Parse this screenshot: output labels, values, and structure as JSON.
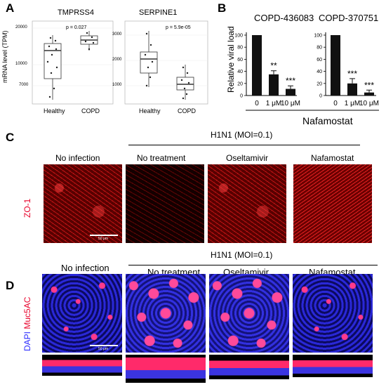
{
  "panels": {
    "a": "A",
    "b": "B",
    "c": "C",
    "d": "D"
  },
  "panel_a": {
    "ylabel": "mRNA level (TPM)",
    "plots": [
      {
        "gene": "TMPRSS4",
        "pvalue": "p = 0.027",
        "yticks": [
          "20000",
          "10000",
          "7000"
        ],
        "groups": [
          "Healthy",
          "COPD"
        ]
      },
      {
        "gene": "SERPINE1",
        "pvalue": "p = 5.9e-05",
        "yticks": [
          "3000",
          "2000",
          "1000"
        ],
        "groups": [
          "Healthy",
          "COPD"
        ]
      }
    ]
  },
  "panel_b": {
    "ylabel": "Relative viral load",
    "xlabel": "Nafamostat",
    "charts": [
      {
        "title": "COPD-436083",
        "yticks": [
          "100",
          "80",
          "60",
          "40",
          "20",
          "0"
        ],
        "categories": [
          "0",
          "1 μM",
          "10 μM"
        ],
        "stars": [
          "",
          "**",
          "***"
        ]
      },
      {
        "title": "COPD-370751",
        "yticks": [
          "100",
          "80",
          "60",
          "40",
          "20",
          "0"
        ],
        "categories": [
          "0",
          "1 μM",
          "10 μM"
        ],
        "stars": [
          "",
          "***",
          "***"
        ]
      }
    ]
  },
  "panel_c": {
    "header": "H1N1 (MOI=0.1)",
    "columns": [
      "No infection",
      "No treatment",
      "Oseltamivir",
      "Nafamostat"
    ],
    "stain": "ZO-1",
    "scale_bar": "50 μm"
  },
  "panel_d": {
    "header": "H1N1 (MOI=0.1)",
    "columns": [
      "No infection",
      "No treatment",
      "Oseltamivir",
      "Nafamostat"
    ],
    "stain_dapi": "DAPI",
    "stain_muc": "Muc5AC",
    "scale_bar": "50 μm"
  },
  "colors": {
    "dapi": "#2b2bff",
    "muc5ac": "#e8002a",
    "zo1": "#e8002a"
  },
  "chart_data": [
    {
      "type": "bar",
      "title": "COPD-436083",
      "categories": [
        "0",
        "1 μM",
        "10 μM"
      ],
      "values": [
        100,
        35,
        11
      ],
      "errors": [
        0,
        6,
        5
      ],
      "xlabel": "Nafamostat",
      "ylabel": "Relative viral load",
      "ylim": [
        0,
        110
      ]
    },
    {
      "type": "bar",
      "title": "COPD-370751",
      "categories": [
        "0",
        "1 μM",
        "10 μM"
      ],
      "values": [
        100,
        20,
        5
      ],
      "errors": [
        0,
        8,
        4
      ],
      "xlabel": "Nafamostat",
      "ylabel": "Relative viral load",
      "ylim": [
        0,
        110
      ]
    }
  ]
}
